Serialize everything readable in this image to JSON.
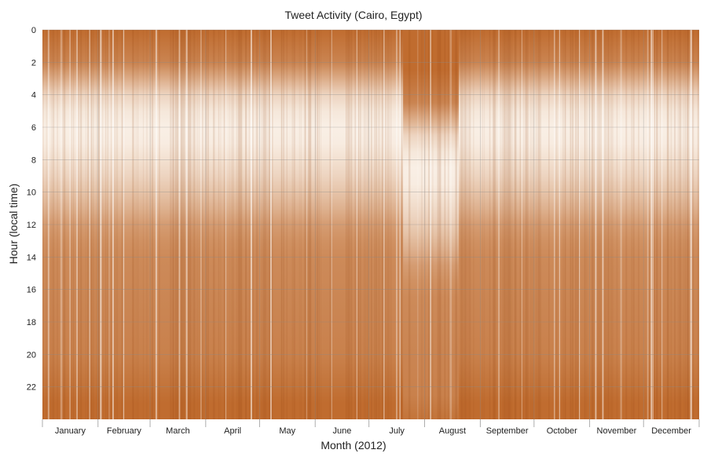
{
  "chart_data": {
    "type": "heatmap",
    "title": "Tweet Activity (Cairo, Egypt)",
    "xlabel": "Month (2012)",
    "ylabel": "Hour (local time)",
    "x_categories": [
      "January",
      "February",
      "March",
      "April",
      "May",
      "June",
      "July",
      "August",
      "September",
      "October",
      "November",
      "December"
    ],
    "month_days": [
      31,
      29,
      31,
      30,
      31,
      30,
      31,
      31,
      30,
      31,
      30,
      31
    ],
    "y_ticks": [
      0,
      2,
      4,
      6,
      8,
      10,
      12,
      14,
      16,
      18,
      20,
      22
    ],
    "ylim": [
      0,
      24
    ],
    "y_inverted": true,
    "grid": true,
    "colors": {
      "high": "#b5540e",
      "low": "#fbf4ec",
      "grid": "#8a8a8a"
    },
    "approx_daily_profile": {
      "hours": [
        0,
        2,
        3,
        4,
        5,
        6,
        7,
        8,
        9,
        10,
        11,
        12,
        13,
        14,
        16,
        18,
        20,
        22,
        23
      ],
      "activity": [
        0.85,
        0.7,
        0.45,
        0.2,
        0.08,
        0.03,
        0.05,
        0.12,
        0.2,
        0.3,
        0.42,
        0.55,
        0.62,
        0.66,
        0.68,
        0.7,
        0.72,
        0.8,
        0.85
      ]
    }
  }
}
